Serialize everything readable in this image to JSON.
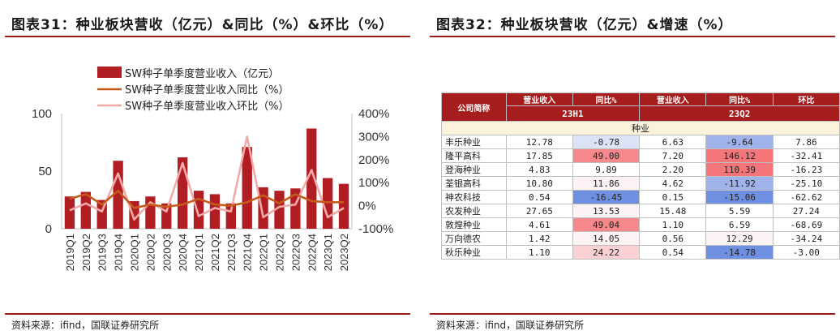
{
  "left": {
    "title": "图表31：种业板块营收（亿元）&同比（%）&环比（%）",
    "source": "资料来源：ifind，国联证券研究所"
  },
  "right": {
    "title": "图表32：种业板块营收（亿元）&增速（%）",
    "source": "资料来源：ifind，国联证券研究所"
  },
  "colors": {
    "bar": "#b01e23",
    "yoy": "#c55a1a",
    "qoq": "#f2aaa9",
    "rule": "#9b1b1b"
  },
  "chart_data": {
    "type": "bar",
    "title": "",
    "legend_position": "top",
    "categories": [
      "2019Q1",
      "2019Q2",
      "2019Q3",
      "2019Q4",
      "2020Q1",
      "2020Q2",
      "2020Q3",
      "2020Q4",
      "2021Q1",
      "2021Q2",
      "2021Q3",
      "2021Q4",
      "2022Q1",
      "2022Q2",
      "2022Q3",
      "2022Q4",
      "2023Q1",
      "2023Q2"
    ],
    "series": [
      {
        "name": "SW种子单季度营业收入（亿元）",
        "type": "bar",
        "axis": "left",
        "values": [
          28,
          32,
          25,
          59,
          24,
          28,
          22,
          62,
          33,
          30,
          22,
          71,
          36,
          33,
          35,
          87,
          44,
          39
        ]
      },
      {
        "name": "SW种子单季度营业收入同比（%）",
        "type": "line",
        "axis": "right",
        "values": [
          30,
          50,
          5,
          65,
          -10,
          5,
          -5,
          5,
          30,
          5,
          0,
          15,
          45,
          10,
          50,
          20,
          15,
          15
        ]
      },
      {
        "name": "SW种子单季度营业收入环比（%）",
        "type": "line",
        "axis": "right",
        "values": [
          -20,
          10,
          -25,
          140,
          -60,
          15,
          -25,
          185,
          -45,
          -10,
          -25,
          300,
          -50,
          -5,
          5,
          155,
          -50,
          -10
        ]
      }
    ],
    "left_axis": {
      "ylim": [
        0,
        100
      ],
      "ticks": [
        "0",
        "50",
        "100"
      ]
    },
    "right_axis": {
      "ylim": [
        -100,
        400
      ],
      "ticks": [
        "-100%",
        "0%",
        "100%",
        "200%",
        "300%",
        "400%"
      ]
    }
  },
  "table": {
    "headers": {
      "name": "公司简称",
      "rev1": "营业收入",
      "yoy1": "同比%",
      "rev2": "营业收入",
      "yoy2": "同比%",
      "qoq": "环比"
    },
    "periods": [
      "23H1",
      "23Q2"
    ],
    "section": "种业",
    "rows": [
      {
        "name": "丰乐种业",
        "rev1": "12.78",
        "yoy1": "-0.78",
        "rev2": "6.63",
        "yoy2": "-9.64",
        "qoq": "7.86"
      },
      {
        "name": "隆平高科",
        "rev1": "17.85",
        "yoy1": "49.00",
        "rev2": "7.20",
        "yoy2": "146.12",
        "qoq": "-32.41"
      },
      {
        "name": "登海种业",
        "rev1": "4.83",
        "yoy1": "9.89",
        "rev2": "2.20",
        "yoy2": "110.39",
        "qoq": "-16.23"
      },
      {
        "name": "荃银高科",
        "rev1": "10.80",
        "yoy1": "11.86",
        "rev2": "4.62",
        "yoy2": "-11.92",
        "qoq": "-25.10"
      },
      {
        "name": "神农科技",
        "rev1": "0.54",
        "yoy1": "-16.45",
        "rev2": "0.15",
        "yoy2": "-15.06",
        "qoq": "-62.62"
      },
      {
        "name": "农发种业",
        "rev1": "27.65",
        "yoy1": "13.53",
        "rev2": "15.48",
        "yoy2": "5.59",
        "qoq": "27.24"
      },
      {
        "name": "敦煌种业",
        "rev1": "4.61",
        "yoy1": "49.04",
        "rev2": "1.10",
        "yoy2": "6.59",
        "qoq": "-68.69"
      },
      {
        "name": "万向德农",
        "rev1": "1.42",
        "yoy1": "14.05",
        "rev2": "0.56",
        "yoy2": "12.29",
        "qoq": "-34.24"
      },
      {
        "name": "秋乐种业",
        "rev1": "1.10",
        "yoy1": "24.22",
        "rev2": "0.54",
        "yoy2": "-14.78",
        "qoq": "-3.00"
      }
    ]
  }
}
